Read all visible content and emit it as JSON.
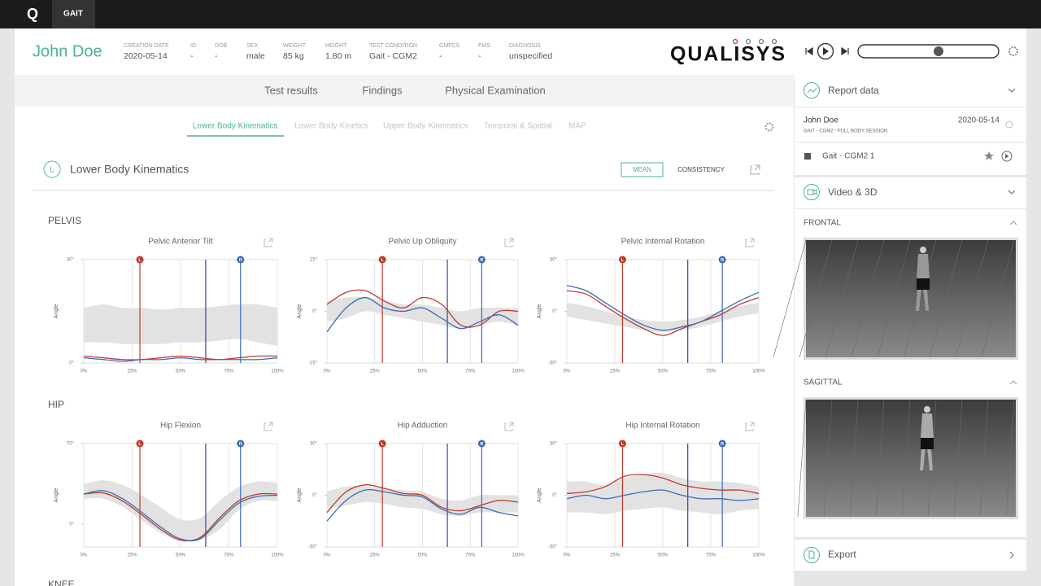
{
  "app": {
    "logo": "Q",
    "tab": "GAIT"
  },
  "patient": {
    "name": "John Doe",
    "fields": [
      {
        "label": "CREATION DATE",
        "value": "2020-05-14"
      },
      {
        "label": "ID",
        "value": "-"
      },
      {
        "label": "DOB",
        "value": "-"
      },
      {
        "label": "SEX",
        "value": "male"
      },
      {
        "label": "WEIGHT",
        "value": "85 kg"
      },
      {
        "label": "HEIGHT",
        "value": "1.80 m"
      },
      {
        "label": "TEST CONDITION",
        "value": "Gait - CGM2"
      },
      {
        "label": "GMFCS",
        "value": "-"
      },
      {
        "label": "FMS",
        "value": "-"
      },
      {
        "label": "DIAGNOSIS",
        "value": "unspecified"
      }
    ]
  },
  "brand": "QUALISYS",
  "tabs": [
    "Test results",
    "Findings",
    "Physical Examination"
  ],
  "subtabs": {
    "items": [
      "Lower Body Kinematics",
      "Lower Body Kinetics",
      "Upper Body Kinematics",
      "Temporal & Spatial",
      "MAP"
    ],
    "active": 0
  },
  "section": {
    "badge": "L",
    "title": "Lower Body Kinematics",
    "buttons": [
      "MEAN",
      "CONSISTENCY"
    ]
  },
  "groups": [
    "PELVIS",
    "HIP",
    "KNEE"
  ],
  "chart_data": [
    {
      "type": "line",
      "title": "Pelvic Anterior Tilt",
      "y_label": "Angle",
      "x": [
        0,
        10,
        20,
        30,
        40,
        50,
        60,
        70,
        80,
        90,
        100
      ],
      "xlim": [
        0,
        100
      ],
      "xticks": [
        {
          "value": 0,
          "label": "0%"
        },
        {
          "value": 25,
          "label": "25%"
        },
        {
          "value": 50,
          "label": "50%"
        },
        {
          "value": 75,
          "label": "75%"
        },
        {
          "value": 100,
          "label": "100%"
        }
      ],
      "ylim": [
        0,
        30
      ],
      "yticks": [
        {
          "value": 0,
          "label": "0°"
        },
        {
          "value": 30,
          "label": "30°"
        }
      ],
      "band": {
        "color": "#e2e2e2",
        "lower": [
          6,
          6,
          5.5,
          5.5,
          5.5,
          6,
          6,
          6.5,
          7,
          6,
          5
        ],
        "upper": [
          16,
          17,
          16,
          16,
          15.5,
          16,
          16,
          16.5,
          17,
          17,
          16
        ]
      },
      "events": [
        {
          "label": "L",
          "value": 29,
          "color": "#c0392b"
        },
        {
          "value": 63,
          "color": "#34459a"
        },
        {
          "label": "R",
          "value": 81,
          "color": "#3a6bb5"
        }
      ],
      "series": [
        {
          "color": "#c0392b",
          "values": [
            2,
            1.5,
            1,
            1,
            1.5,
            2,
            1.5,
            1,
            1.5,
            2,
            2
          ]
        },
        {
          "color": "#3a6bb5",
          "values": [
            1.5,
            1,
            0.5,
            1,
            1,
            1.5,
            1,
            1,
            1,
            1,
            1.5
          ]
        }
      ]
    },
    {
      "type": "line",
      "title": "Pelvic Up Obliquity",
      "y_label": "Angle",
      "x": [
        0,
        10,
        20,
        30,
        40,
        50,
        60,
        70,
        80,
        90,
        100
      ],
      "xlim": [
        0,
        100
      ],
      "xticks": [
        {
          "value": 0,
          "label": "0%"
        },
        {
          "value": 25,
          "label": "25%"
        },
        {
          "value": 50,
          "label": "50%"
        },
        {
          "value": 75,
          "label": "75%"
        },
        {
          "value": 100,
          "label": "100%"
        }
      ],
      "ylim": [
        -15,
        15
      ],
      "yticks": [
        {
          "value": -15,
          "label": "-15°"
        },
        {
          "value": 0,
          "label": "0°"
        },
        {
          "value": 15,
          "label": "15°"
        }
      ],
      "band": {
        "color": "#e2e2e2",
        "lower": [
          -3,
          -2,
          0,
          -1,
          -2,
          -3,
          -4,
          -5,
          -4,
          -3,
          -4
        ],
        "upper": [
          3,
          4,
          4,
          3,
          2,
          2,
          1,
          0,
          1,
          1,
          1
        ]
      },
      "events": [
        {
          "label": "L",
          "value": 29,
          "color": "#c0392b"
        },
        {
          "value": 63,
          "color": "#34459a"
        },
        {
          "label": "R",
          "value": 81,
          "color": "#3a6bb5"
        }
      ],
      "series": [
        {
          "color": "#c0392b",
          "values": [
            2,
            5.5,
            6,
            3,
            1,
            4,
            2,
            -4,
            -4,
            0,
            0
          ]
        },
        {
          "color": "#3a6bb5",
          "values": [
            -6,
            1,
            4,
            1,
            0,
            1,
            -2,
            -5,
            -3,
            -1,
            -4
          ]
        }
      ]
    },
    {
      "type": "line",
      "title": "Pelvic Internal Rotation",
      "y_label": "Angle",
      "x": [
        0,
        10,
        20,
        30,
        40,
        50,
        60,
        70,
        80,
        90,
        100
      ],
      "xlim": [
        0,
        100
      ],
      "xticks": [
        {
          "value": 0,
          "label": "0%"
        },
        {
          "value": 25,
          "label": "25%"
        },
        {
          "value": 50,
          "label": "50%"
        },
        {
          "value": 75,
          "label": "75%"
        },
        {
          "value": 100,
          "label": "100%"
        }
      ],
      "ylim": [
        -30,
        30
      ],
      "yticks": [
        {
          "value": -30,
          "label": "-30°"
        },
        {
          "value": 0,
          "label": "0°"
        },
        {
          "value": 30,
          "label": "30°"
        }
      ],
      "band": {
        "color": "#e2e2e2",
        "lower": [
          -3,
          -5,
          -7,
          -9,
          -11,
          -12,
          -11,
          -9,
          -6,
          -3,
          -1
        ],
        "upper": [
          5,
          3,
          0,
          -3,
          -5,
          -6,
          -5,
          -3,
          0,
          3,
          5
        ]
      },
      "events": [
        {
          "label": "L",
          "value": 29,
          "color": "#c0392b"
        },
        {
          "value": 63,
          "color": "#34459a"
        },
        {
          "label": "R",
          "value": 81,
          "color": "#3a6bb5"
        }
      ],
      "series": [
        {
          "color": "#c0392b",
          "values": [
            12,
            10,
            3,
            -4,
            -10,
            -14,
            -10,
            -6,
            -2,
            4,
            8
          ]
        },
        {
          "color": "#3a6bb5",
          "values": [
            15,
            12,
            5,
            -2,
            -8,
            -11,
            -9,
            -6,
            0,
            6,
            11
          ]
        }
      ]
    },
    {
      "type": "line",
      "title": "Hip Flexion",
      "y_label": "Angle",
      "x": [
        0,
        10,
        20,
        30,
        40,
        50,
        60,
        70,
        80,
        90,
        100
      ],
      "xlim": [
        0,
        100
      ],
      "xticks": [
        {
          "value": 0,
          "label": "0%"
        },
        {
          "value": 25,
          "label": "25%"
        },
        {
          "value": 50,
          "label": "50%"
        },
        {
          "value": 75,
          "label": "75%"
        },
        {
          "value": 100,
          "label": "100%"
        }
      ],
      "ylim": [
        -20,
        70
      ],
      "yticks": [
        {
          "value": 0,
          "label": "0°"
        },
        {
          "value": 70,
          "label": "70°"
        }
      ],
      "band": {
        "color": "#e2e2e2",
        "lower": [
          22,
          22,
          15,
          3,
          -8,
          -15,
          -14,
          -5,
          12,
          20,
          20
        ],
        "upper": [
          35,
          38,
          34,
          25,
          14,
          4,
          5,
          20,
          32,
          37,
          36
        ]
      },
      "events": [
        {
          "label": "L",
          "value": 29,
          "color": "#c0392b"
        },
        {
          "value": 63,
          "color": "#34459a"
        },
        {
          "label": "R",
          "value": 81,
          "color": "#3a6bb5"
        }
      ],
      "series": [
        {
          "color": "#c0392b",
          "values": [
            26,
            27,
            20,
            8,
            -5,
            -14,
            -12,
            5,
            20,
            26,
            26
          ]
        },
        {
          "color": "#3a6bb5",
          "values": [
            26,
            29,
            22,
            10,
            -3,
            -13,
            -13,
            3,
            18,
            24,
            25
          ]
        }
      ]
    },
    {
      "type": "line",
      "title": "Hip Adduction",
      "y_label": "Angle",
      "x": [
        0,
        10,
        20,
        30,
        40,
        50,
        60,
        70,
        80,
        90,
        100
      ],
      "xlim": [
        0,
        100
      ],
      "xticks": [
        {
          "value": 0,
          "label": "0%"
        },
        {
          "value": 25,
          "label": "25%"
        },
        {
          "value": 50,
          "label": "50%"
        },
        {
          "value": 75,
          "label": "75%"
        },
        {
          "value": 100,
          "label": "100%"
        }
      ],
      "ylim": [
        -30,
        30
      ],
      "yticks": [
        {
          "value": -30,
          "label": "-30°"
        },
        {
          "value": 0,
          "label": "0°"
        },
        {
          "value": 30,
          "label": "30°"
        }
      ],
      "band": {
        "color": "#e2e2e2",
        "lower": [
          -8,
          -6,
          -4,
          -5,
          -7,
          -8,
          -11,
          -12,
          -10,
          -10,
          -10
        ],
        "upper": [
          2,
          5,
          5,
          4,
          3,
          2,
          -2,
          -3,
          0,
          0,
          0
        ]
      },
      "events": [
        {
          "label": "L",
          "value": 29,
          "color": "#c0392b"
        },
        {
          "value": 63,
          "color": "#34459a"
        },
        {
          "label": "R",
          "value": 81,
          "color": "#3a6bb5"
        }
      ],
      "series": [
        {
          "color": "#c0392b",
          "values": [
            -10,
            2,
            6,
            4,
            1,
            0,
            -7,
            -9,
            -6,
            -3,
            -4
          ]
        },
        {
          "color": "#3a6bb5",
          "values": [
            -15,
            -3,
            3,
            2,
            0,
            -1,
            -8,
            -11,
            -7,
            -10,
            -12
          ]
        }
      ]
    },
    {
      "type": "line",
      "title": "Hip Internal Rotation",
      "y_label": "Angle",
      "x": [
        0,
        10,
        20,
        30,
        40,
        50,
        60,
        70,
        80,
        90,
        100
      ],
      "xlim": [
        0,
        100
      ],
      "xticks": [
        {
          "value": 0,
          "label": "0%"
        },
        {
          "value": 25,
          "label": "25%"
        },
        {
          "value": 50,
          "label": "50%"
        },
        {
          "value": 75,
          "label": "75%"
        },
        {
          "value": 100,
          "label": "100%"
        }
      ],
      "ylim": [
        -30,
        30
      ],
      "yticks": [
        {
          "value": -30,
          "label": "-30°"
        },
        {
          "value": 0,
          "label": "0°"
        },
        {
          "value": 30,
          "label": "30°"
        }
      ],
      "band": {
        "color": "#e2e2e2",
        "lower": [
          -10,
          -10,
          -11,
          -9,
          -8,
          -7,
          -9,
          -10,
          -11,
          -9,
          -8
        ],
        "upper": [
          8,
          8,
          6,
          10,
          12,
          13,
          10,
          8,
          8,
          7,
          5
        ]
      },
      "events": [
        {
          "label": "L",
          "value": 29,
          "color": "#c0392b"
        },
        {
          "value": 63,
          "color": "#34459a"
        },
        {
          "label": "R",
          "value": 81,
          "color": "#3a6bb5"
        }
      ],
      "series": [
        {
          "color": "#c0392b",
          "values": [
            1,
            2,
            5,
            11,
            12,
            10,
            6,
            4,
            3,
            3,
            1
          ]
        },
        {
          "color": "#3a6bb5",
          "values": [
            -2,
            0,
            -2,
            0,
            2,
            3,
            0,
            -2,
            -2,
            -3,
            -2
          ]
        }
      ]
    }
  ],
  "sidebar": {
    "report": {
      "title": "Report data",
      "name": "John Doe",
      "date": "2020-05-14",
      "session": "GAIT - CGM2 - FULL BODY SESSION",
      "item": "Gait - CGM2 1"
    },
    "video": {
      "title": "Video & 3D",
      "views": [
        "FRONTAL",
        "SAGITTAL"
      ]
    },
    "export": "Export"
  }
}
